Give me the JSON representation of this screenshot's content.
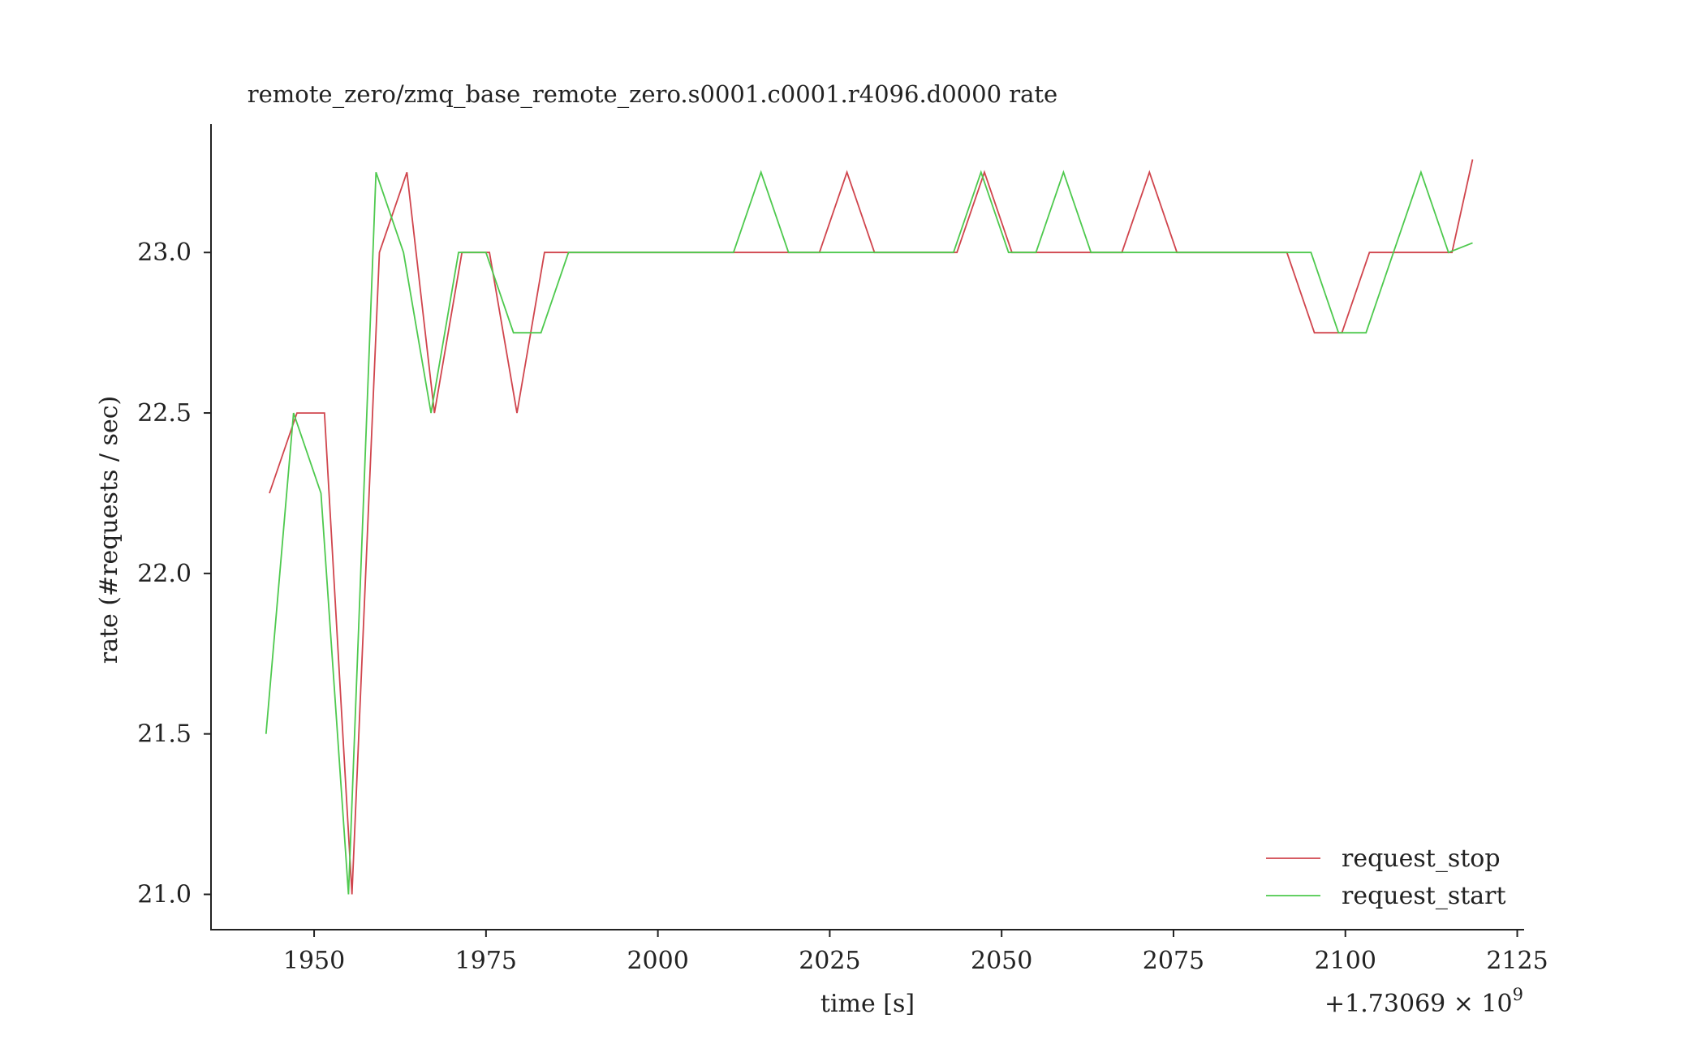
{
  "chart_data": {
    "type": "line",
    "title": "remote_zero/zmq_base_remote_zero.s0001.c0001.r4096.d0000 rate",
    "xlabel": "time [s]",
    "ylabel": "rate (#requests / sec)",
    "x_offset_label": "+1.73069 × 10",
    "x_offset_exponent": "9",
    "xlim": [
      1935,
      2126
    ],
    "ylim": [
      20.89,
      23.4
    ],
    "x_ticks": [
      1950,
      1975,
      2000,
      2025,
      2050,
      2075,
      2100,
      2125
    ],
    "x_tick_labels": [
      "1950",
      "1975",
      "2000",
      "2025",
      "2050",
      "2075",
      "2100",
      "2125"
    ],
    "y_ticks": [
      21.0,
      21.5,
      22.0,
      22.5,
      23.0
    ],
    "y_tick_labels": [
      "21.0",
      "21.5",
      "22.0",
      "22.5",
      "23.0"
    ],
    "grid": false,
    "legend_position": "bottom-right",
    "series": [
      {
        "name": "request_stop",
        "color": "#d0454d",
        "points": [
          [
            1943.5,
            22.25
          ],
          [
            1947.5,
            22.5
          ],
          [
            1951.5,
            22.5
          ],
          [
            1955.5,
            21.0
          ],
          [
            1959.5,
            23.0
          ],
          [
            1963.5,
            23.25
          ],
          [
            1967.5,
            22.5
          ],
          [
            1971.5,
            23.0
          ],
          [
            1975.5,
            23.0
          ],
          [
            1979.5,
            22.5
          ],
          [
            1983.5,
            23.0
          ],
          [
            1987.5,
            23.0
          ],
          [
            1991.5,
            23.0
          ],
          [
            1995.5,
            23.0
          ],
          [
            1999.5,
            23.0
          ],
          [
            2003.5,
            23.0
          ],
          [
            2007.5,
            23.0
          ],
          [
            2011.5,
            23.0
          ],
          [
            2015.5,
            23.0
          ],
          [
            2019.5,
            23.0
          ],
          [
            2023.5,
            23.0
          ],
          [
            2027.5,
            23.25
          ],
          [
            2031.5,
            23.0
          ],
          [
            2035.5,
            23.0
          ],
          [
            2039.5,
            23.0
          ],
          [
            2043.5,
            23.0
          ],
          [
            2047.5,
            23.25
          ],
          [
            2051.5,
            23.0
          ],
          [
            2055.5,
            23.0
          ],
          [
            2059.5,
            23.0
          ],
          [
            2063.5,
            23.0
          ],
          [
            2067.5,
            23.0
          ],
          [
            2071.5,
            23.25
          ],
          [
            2075.5,
            23.0
          ],
          [
            2079.5,
            23.0
          ],
          [
            2083.5,
            23.0
          ],
          [
            2087.5,
            23.0
          ],
          [
            2091.5,
            23.0
          ],
          [
            2095.5,
            22.75
          ],
          [
            2099.5,
            22.75
          ],
          [
            2103.5,
            23.0
          ],
          [
            2107.5,
            23.0
          ],
          [
            2111.5,
            23.0
          ],
          [
            2115.5,
            23.0
          ],
          [
            2118.5,
            23.29
          ]
        ]
      },
      {
        "name": "request_start",
        "color": "#4ec94e",
        "points": [
          [
            1943.0,
            21.5
          ],
          [
            1947.0,
            22.5
          ],
          [
            1951.0,
            22.25
          ],
          [
            1955.0,
            21.0
          ],
          [
            1959.0,
            23.25
          ],
          [
            1963.0,
            23.0
          ],
          [
            1967.0,
            22.5
          ],
          [
            1971.0,
            23.0
          ],
          [
            1975.0,
            23.0
          ],
          [
            1979.0,
            22.75
          ],
          [
            1983.0,
            22.75
          ],
          [
            1987.0,
            23.0
          ],
          [
            1991.0,
            23.0
          ],
          [
            1995.0,
            23.0
          ],
          [
            1999.0,
            23.0
          ],
          [
            2003.0,
            23.0
          ],
          [
            2007.0,
            23.0
          ],
          [
            2011.0,
            23.0
          ],
          [
            2015.0,
            23.25
          ],
          [
            2019.0,
            23.0
          ],
          [
            2023.0,
            23.0
          ],
          [
            2027.0,
            23.0
          ],
          [
            2031.0,
            23.0
          ],
          [
            2035.0,
            23.0
          ],
          [
            2039.0,
            23.0
          ],
          [
            2043.0,
            23.0
          ],
          [
            2047.0,
            23.25
          ],
          [
            2051.0,
            23.0
          ],
          [
            2055.0,
            23.0
          ],
          [
            2059.0,
            23.25
          ],
          [
            2063.0,
            23.0
          ],
          [
            2067.0,
            23.0
          ],
          [
            2071.0,
            23.0
          ],
          [
            2075.0,
            23.0
          ],
          [
            2079.0,
            23.0
          ],
          [
            2083.0,
            23.0
          ],
          [
            2087.0,
            23.0
          ],
          [
            2091.0,
            23.0
          ],
          [
            2095.0,
            23.0
          ],
          [
            2099.0,
            22.75
          ],
          [
            2103.0,
            22.75
          ],
          [
            2107.0,
            23.0
          ],
          [
            2111.0,
            23.25
          ],
          [
            2115.0,
            23.0
          ],
          [
            2118.5,
            23.03
          ]
        ]
      }
    ]
  }
}
